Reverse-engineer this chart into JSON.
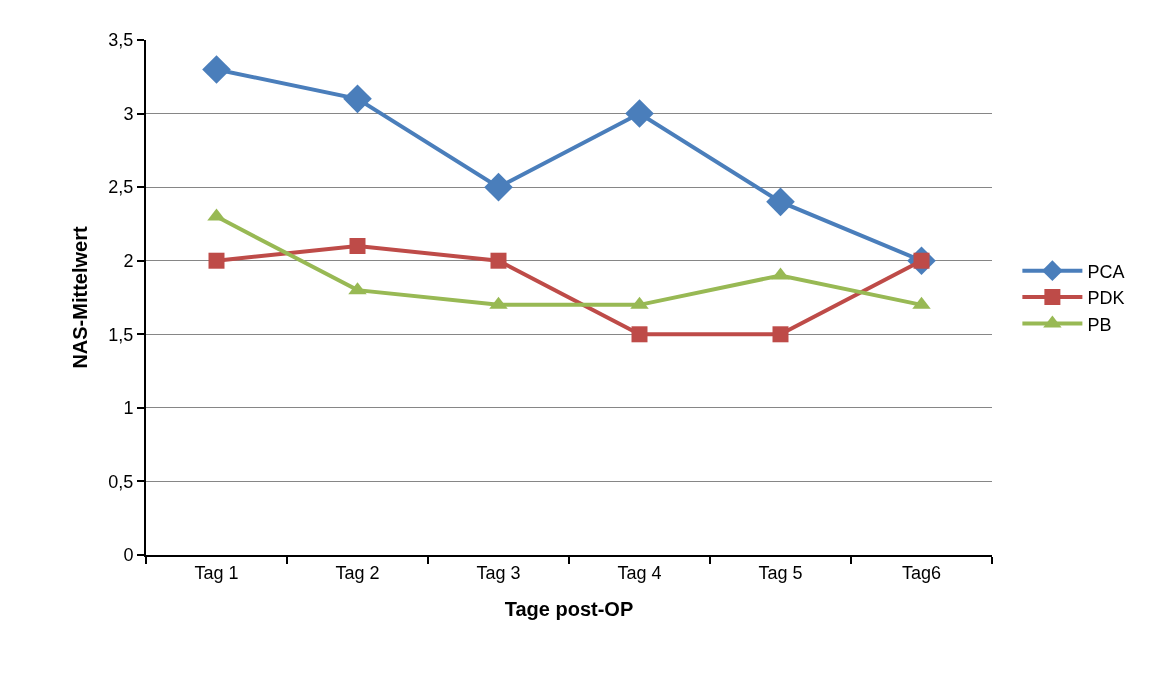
{
  "chart_data": {
    "type": "line",
    "xlabel": "Tage post-OP",
    "ylabel": "NAS-Mittelwert",
    "categories": [
      "Tag 1",
      "Tag 2",
      "Tag 3",
      "Tag 4",
      "Tag 5",
      "Tag6"
    ],
    "series": [
      {
        "name": "PCA",
        "color": "#4a7ebb",
        "marker": "diamond",
        "values": [
          3.3,
          3.1,
          2.5,
          3.0,
          2.4,
          2.0
        ]
      },
      {
        "name": "PDK",
        "color": "#be4b48",
        "marker": "square",
        "values": [
          2.0,
          2.1,
          2.0,
          1.5,
          1.5,
          2.0
        ]
      },
      {
        "name": "PB",
        "color": "#98b954",
        "marker": "triangle",
        "values": [
          2.3,
          1.8,
          1.7,
          1.7,
          1.9,
          1.7
        ]
      }
    ],
    "ylim": [
      0,
      3.5
    ],
    "yticks": [
      0,
      {
        "value": 0.5,
        "label": "0,5"
      },
      1,
      {
        "value": 1.5,
        "label": "1,5"
      },
      2,
      {
        "value": 2.5,
        "label": "2,5"
      },
      3,
      {
        "value": 3.5,
        "label": "3,5"
      }
    ],
    "grid": "y",
    "legend": "right",
    "line_style": "solid"
  }
}
